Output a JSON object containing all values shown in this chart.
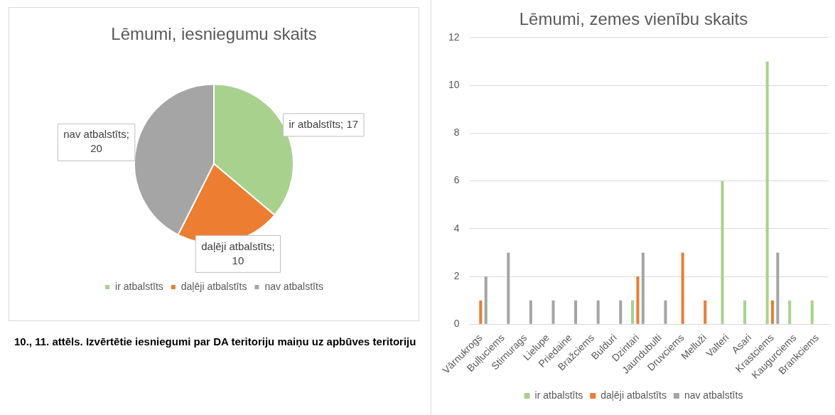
{
  "chart_data": [
    {
      "type": "pie",
      "title": "Lēmumi, iesniegumu skaits",
      "categories": [
        "ir atbalstīts",
        "daļēji atbalstīts",
        "nav atbalstīts"
      ],
      "values": [
        17,
        10,
        20
      ],
      "colors": [
        "#a9d18e",
        "#ed7d31",
        "#a5a5a5"
      ],
      "value_labels": [
        "ir atbalstīts; 17",
        "daļēji atbalstīts; 10",
        "nav atbalstīts; 20"
      ],
      "legend": "bottom",
      "annotations": [
        "10., 11. attēls. Izvērtētie iesniegumi par DA teritoriju maiņu uz apbūves teritoriju"
      ]
    },
    {
      "type": "bar",
      "title": "Lēmumi, zemes vienību skaits",
      "categories": [
        "Vārnukrogs",
        "Bulļuciems",
        "Stirnurags",
        "Lielupe",
        "Priedaine",
        "Bražciems",
        "Bulduri",
        "Dzintari",
        "Jaundubulti",
        "Druvciems",
        "Melluži",
        "Valteri",
        "Asari",
        "Krastciems",
        "Kaugurciems",
        "Brankciems"
      ],
      "series": [
        {
          "name": "ir atbalstīts",
          "color": "#a9d18e",
          "values": [
            null,
            null,
            null,
            null,
            null,
            null,
            null,
            1,
            null,
            null,
            null,
            6,
            1,
            11,
            1,
            1
          ]
        },
        {
          "name": "daļēji atbalstīts",
          "color": "#ed7d31",
          "values": [
            1,
            null,
            null,
            null,
            null,
            null,
            null,
            2,
            null,
            3,
            1,
            null,
            null,
            1,
            null,
            null
          ]
        },
        {
          "name": "nav atbalstīts",
          "color": "#a5a5a5",
          "values": [
            2,
            3,
            1,
            1,
            1,
            1,
            1,
            3,
            1,
            null,
            null,
            null,
            null,
            3,
            null,
            null
          ]
        }
      ],
      "ylim": [
        0,
        12
      ],
      "yticks": [
        0,
        2,
        4,
        6,
        8,
        10,
        12
      ],
      "grid": "y",
      "legend": "bottom"
    }
  ]
}
